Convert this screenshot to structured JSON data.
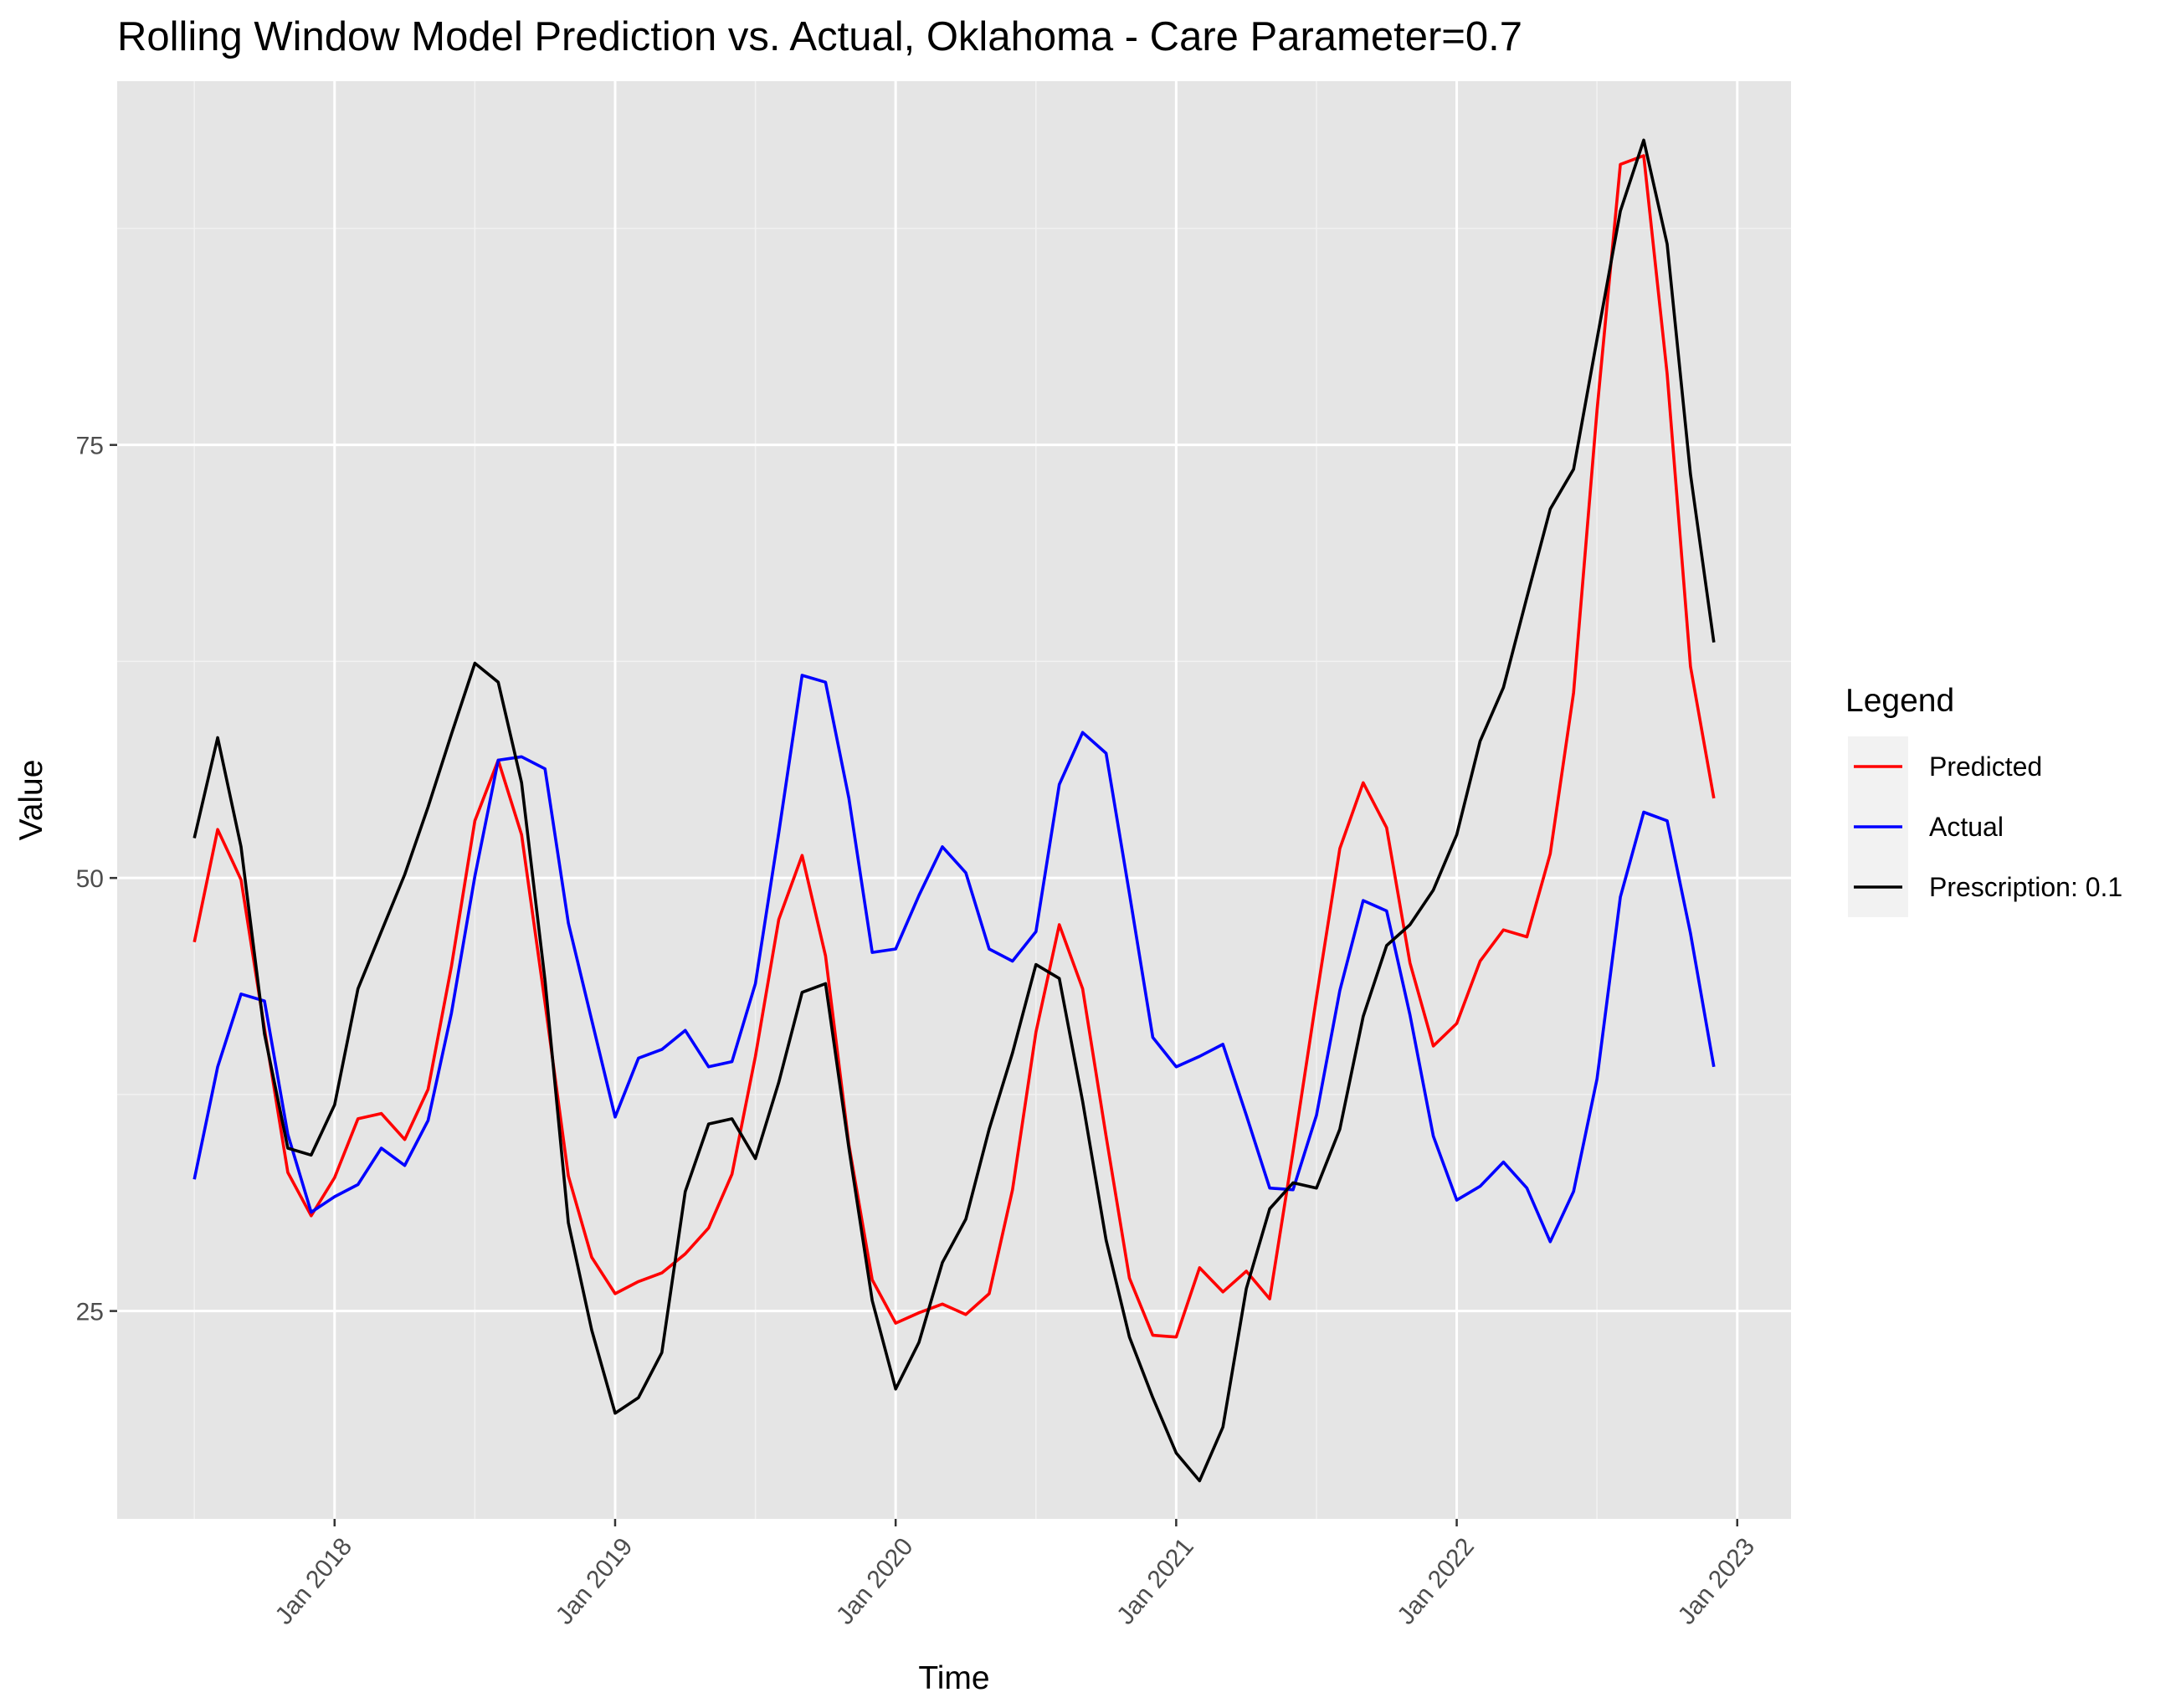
{
  "chart_data": {
    "type": "line",
    "title": "Rolling Window Model Prediction vs. Actual, Oklahoma - Care Parameter=0.7",
    "xlabel": "Time",
    "ylabel": "Value",
    "x_ticks": [
      "Jan 2018",
      "Jan 2019",
      "Jan 2020",
      "Jan 2021",
      "Jan 2022",
      "Jan 2023"
    ],
    "y_ticks": [
      25,
      50,
      75
    ],
    "ylim": [
      13,
      96
    ],
    "grid": true,
    "legend": {
      "title": "Legend",
      "placement": "right"
    },
    "x": [
      "2017-07",
      "2017-08",
      "2017-09",
      "2017-10",
      "2017-11",
      "2017-12",
      "2018-01",
      "2018-02",
      "2018-03",
      "2018-04",
      "2018-05",
      "2018-06",
      "2018-07",
      "2018-08",
      "2018-09",
      "2018-10",
      "2018-11",
      "2018-12",
      "2019-01",
      "2019-02",
      "2019-03",
      "2019-04",
      "2019-05",
      "2019-06",
      "2019-07",
      "2019-08",
      "2019-09",
      "2019-10",
      "2019-11",
      "2019-12",
      "2020-01",
      "2020-02",
      "2020-03",
      "2020-04",
      "2020-05",
      "2020-06",
      "2020-07",
      "2020-08",
      "2020-09",
      "2020-10",
      "2020-11",
      "2020-12",
      "2021-01",
      "2021-02",
      "2021-03",
      "2021-04",
      "2021-05",
      "2021-06",
      "2021-07",
      "2021-08",
      "2021-09",
      "2021-10",
      "2021-11",
      "2021-12",
      "2022-01",
      "2022-02",
      "2022-03",
      "2022-04",
      "2022-05",
      "2022-06",
      "2022-07",
      "2022-08",
      "2022-09",
      "2022-10",
      "2022-11",
      "2022-12"
    ],
    "series": [
      {
        "name": "Predicted",
        "color": "#ff0000",
        "values": [
          46.3,
          52.8,
          49.9,
          41.3,
          33.0,
          30.5,
          32.7,
          36.1,
          36.4,
          34.9,
          37.8,
          44.9,
          53.3,
          56.8,
          52.5,
          42.8,
          32.8,
          28.1,
          26.0,
          26.7,
          27.2,
          28.3,
          29.8,
          32.9,
          39.7,
          47.6,
          51.3,
          45.5,
          34.6,
          26.8,
          24.3,
          24.9,
          25.4,
          24.8,
          26.0,
          32.0,
          41.1,
          47.3,
          43.6,
          35.1,
          26.9,
          23.6,
          23.5,
          27.5,
          26.1,
          27.3,
          25.7,
          34.2,
          43.1,
          51.7,
          55.5,
          52.9,
          45.1,
          40.3,
          41.6,
          45.2,
          47.0,
          46.6,
          51.4,
          60.7,
          77.0,
          91.2,
          91.7,
          79.1,
          62.2,
          54.6
        ]
      },
      {
        "name": "Actual",
        "color": "#0000ff",
        "values": [
          32.6,
          39.1,
          43.3,
          42.9,
          35.2,
          30.7,
          31.6,
          32.3,
          34.4,
          33.4,
          36.0,
          42.2,
          50.1,
          56.8,
          57.0,
          56.3,
          47.4,
          41.8,
          36.2,
          39.6,
          40.1,
          41.2,
          39.1,
          39.4,
          43.9,
          52.6,
          61.7,
          61.3,
          54.6,
          45.7,
          45.9,
          49.0,
          51.8,
          50.3,
          45.9,
          45.2,
          46.9,
          55.4,
          58.4,
          57.2,
          49.1,
          40.8,
          39.1,
          39.7,
          40.4,
          36.3,
          32.1,
          32.0,
          36.3,
          43.5,
          48.7,
          48.1,
          42.1,
          35.1,
          31.4,
          32.2,
          33.6,
          32.1,
          29.0,
          31.9,
          38.4,
          48.9,
          53.8,
          53.3,
          46.8,
          39.1
        ]
      },
      {
        "name": "Prescription: 0.1",
        "color": "#000000",
        "values": [
          52.3,
          58.1,
          51.8,
          41.0,
          34.4,
          34.0,
          36.9,
          43.6,
          46.9,
          50.2,
          54.1,
          58.3,
          62.4,
          61.3,
          55.5,
          44.1,
          30.1,
          23.9,
          19.1,
          20.0,
          22.6,
          31.9,
          35.8,
          36.1,
          33.8,
          38.2,
          43.4,
          43.9,
          34.4,
          25.6,
          20.5,
          23.2,
          27.8,
          30.3,
          35.5,
          39.9,
          45.0,
          44.2,
          37.1,
          29.1,
          23.5,
          20.0,
          16.8,
          15.2,
          18.3,
          26.3,
          30.9,
          32.4,
          32.1,
          35.5,
          42.0,
          46.1,
          47.3,
          49.3,
          52.5,
          57.9,
          61.0,
          66.2,
          71.3,
          73.6,
          81.1,
          88.5,
          92.6,
          86.6,
          73.3,
          63.6
        ]
      }
    ]
  }
}
